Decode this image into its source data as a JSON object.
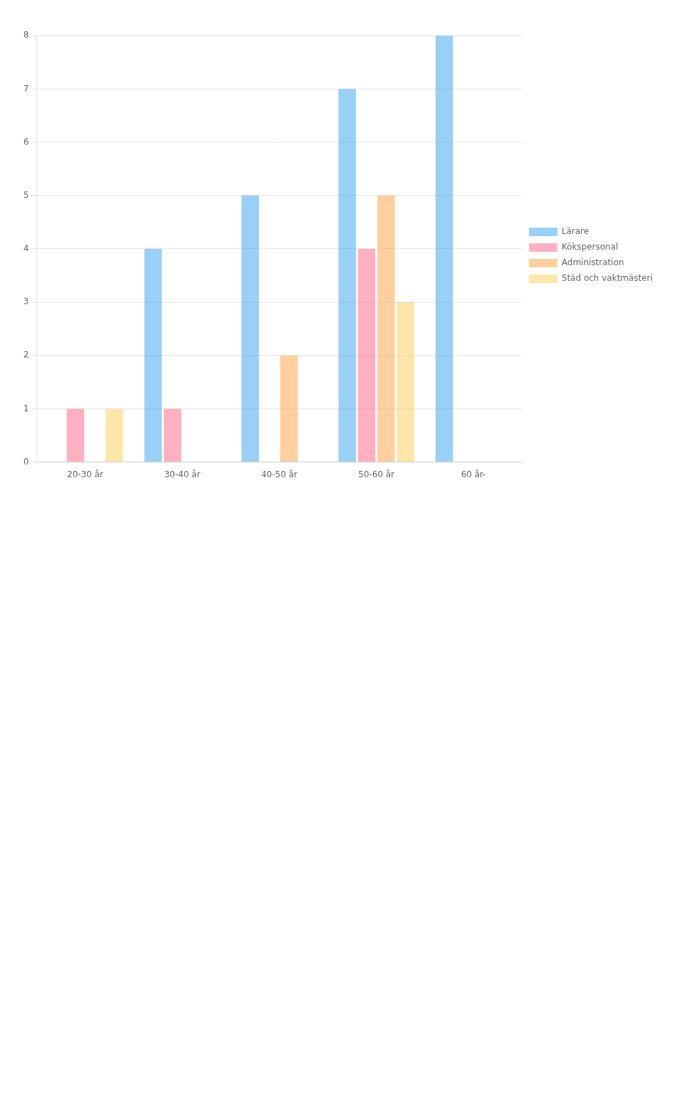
{
  "chart_data": {
    "type": "bar",
    "categories": [
      "20-30 år",
      "30-40 år",
      "40-50 år",
      "50-60 år",
      "60 år-"
    ],
    "series": [
      {
        "name": "Lärare",
        "values": [
          0,
          4,
          5,
          7,
          8
        ]
      },
      {
        "name": "Kökspersonal",
        "values": [
          1,
          1,
          0,
          4,
          0
        ]
      },
      {
        "name": "Administration",
        "values": [
          0,
          0,
          2,
          5,
          0
        ]
      },
      {
        "name": "Städ och vaktmästeri",
        "values": [
          1,
          0,
          0,
          3,
          0
        ]
      }
    ],
    "ylim": [
      0,
      8
    ],
    "yticks": [
      0,
      1,
      2,
      3,
      4,
      5,
      6,
      7,
      8
    ],
    "grid": true,
    "legend": "right"
  }
}
